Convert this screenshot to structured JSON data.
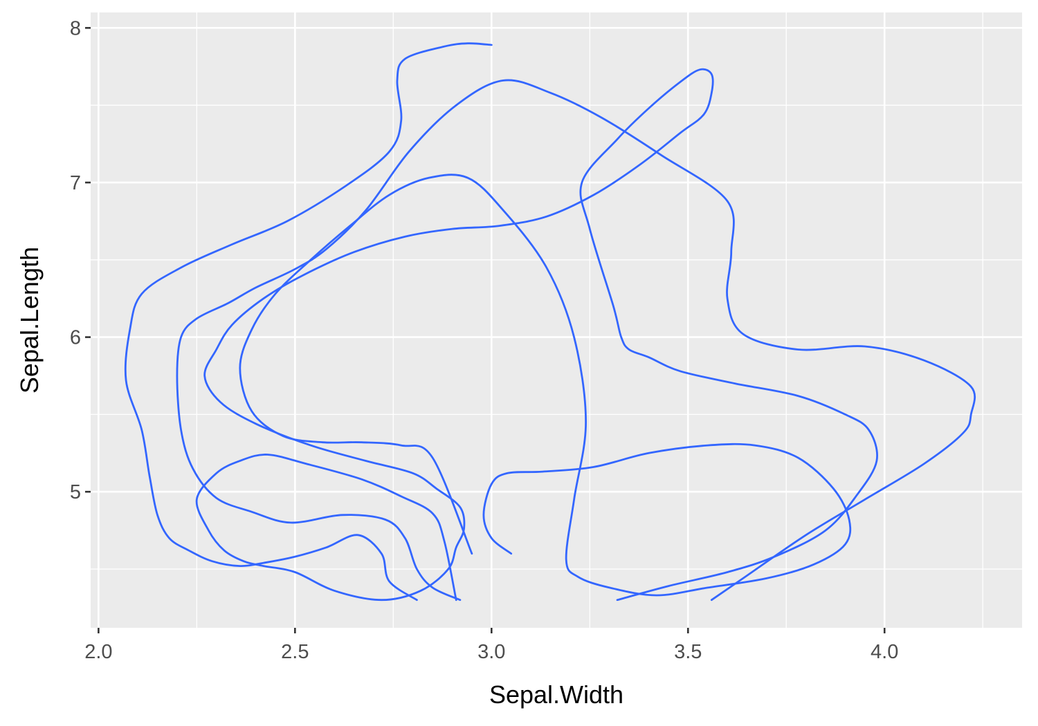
{
  "chart_data": {
    "type": "contour",
    "xlabel": "Sepal.Width",
    "ylabel": "Sepal.Length",
    "xlim": [
      1.98,
      4.35
    ],
    "ylim": [
      4.12,
      8.1
    ],
    "x_ticks": [
      2.0,
      2.5,
      3.0,
      3.5,
      4.0
    ],
    "x_tick_labels": [
      "2.0",
      "2.5",
      "3.0",
      "3.5",
      "4.0"
    ],
    "y_ticks": [
      5,
      6,
      7,
      8
    ],
    "y_tick_labels": [
      "5",
      "6",
      "7",
      "8"
    ],
    "grid": true,
    "legend": "none",
    "panel_background": "#ebebeb",
    "line_color": "#3366FF",
    "series": [
      {
        "x": [
          2.81,
          2.74,
          2.72,
          2.66,
          2.58,
          2.5,
          2.42,
          2.36,
          2.29,
          2.23,
          2.18,
          2.15,
          2.13,
          2.11,
          2.07,
          2.08,
          2.11,
          2.21,
          2.34,
          2.48,
          2.63,
          2.74,
          2.77,
          2.76,
          2.78,
          2.88,
          2.94,
          3.0
        ],
        "y": [
          4.3,
          4.42,
          4.6,
          4.72,
          4.64,
          4.58,
          4.54,
          4.52,
          4.55,
          4.62,
          4.7,
          4.85,
          5.1,
          5.4,
          5.72,
          6.05,
          6.28,
          6.45,
          6.6,
          6.75,
          6.98,
          7.2,
          7.4,
          7.66,
          7.8,
          7.88,
          7.9,
          7.89
        ]
      },
      {
        "x": [
          2.92,
          2.85,
          2.81,
          2.78,
          2.73,
          2.62,
          2.49,
          2.39,
          2.3,
          2.24,
          2.21,
          2.2,
          2.21,
          2.25,
          2.33,
          2.4,
          2.5,
          2.58,
          2.68,
          2.79,
          2.91,
          3.03,
          3.15,
          3.28,
          3.43,
          3.6,
          3.61,
          3.6,
          3.64,
          3.78,
          3.95,
          4.1,
          4.22,
          4.22,
          4.2,
          4.1,
          3.95,
          3.8,
          3.64,
          3.56
        ],
        "y": [
          4.3,
          4.38,
          4.5,
          4.7,
          4.82,
          4.85,
          4.8,
          4.87,
          4.96,
          5.15,
          5.4,
          5.75,
          6.0,
          6.12,
          6.22,
          6.32,
          6.44,
          6.57,
          6.82,
          7.2,
          7.5,
          7.66,
          7.58,
          7.42,
          7.18,
          6.88,
          6.55,
          6.25,
          6.02,
          5.92,
          5.94,
          5.85,
          5.68,
          5.5,
          5.38,
          5.18,
          4.95,
          4.72,
          4.44,
          4.3
        ]
      },
      {
        "x": [
          3.32,
          3.45,
          3.6,
          3.72,
          3.85,
          3.93,
          3.98,
          3.96,
          3.9,
          3.78,
          3.62,
          3.48,
          3.4,
          3.35,
          3.33,
          3.31,
          3.25,
          3.23,
          3.32,
          3.4,
          3.48,
          3.53,
          3.56,
          3.56,
          3.54,
          3.48,
          3.38,
          3.26,
          3.14,
          3.02,
          2.9,
          2.78,
          2.65,
          2.52,
          2.42,
          2.34,
          2.3,
          2.27,
          2.31,
          2.4,
          2.54,
          2.68,
          2.8,
          2.86,
          2.92,
          2.93,
          2.91,
          2.89,
          2.82,
          2.72,
          2.6,
          2.5,
          2.42,
          2.37,
          2.32,
          2.28,
          2.25,
          2.3,
          2.36,
          2.43,
          2.53,
          2.67,
          2.77,
          2.85,
          2.88,
          2.91
        ],
        "y": [
          4.3,
          4.39,
          4.48,
          4.58,
          4.75,
          4.98,
          5.2,
          5.4,
          5.5,
          5.62,
          5.7,
          5.78,
          5.87,
          5.92,
          6.0,
          6.2,
          6.7,
          7.0,
          7.28,
          7.48,
          7.65,
          7.73,
          7.7,
          7.58,
          7.44,
          7.32,
          7.12,
          6.92,
          6.78,
          6.72,
          6.7,
          6.65,
          6.55,
          6.4,
          6.25,
          6.08,
          5.92,
          5.75,
          5.58,
          5.44,
          5.3,
          5.2,
          5.12,
          5.02,
          4.9,
          4.76,
          4.64,
          4.5,
          4.36,
          4.3,
          4.36,
          4.48,
          4.52,
          4.55,
          4.62,
          4.75,
          4.95,
          5.12,
          5.2,
          5.24,
          5.18,
          5.08,
          4.97,
          4.86,
          4.68,
          4.3
        ]
      },
      {
        "x": [
          3.05,
          3.0,
          2.98,
          3.0,
          3.04,
          3.13,
          3.26,
          3.4,
          3.55,
          3.67,
          3.78,
          3.87,
          3.91,
          3.9,
          3.82,
          3.7,
          3.55,
          3.42,
          3.3,
          3.22,
          3.19,
          3.21,
          3.24,
          3.21,
          3.14,
          3.03,
          2.94,
          2.84,
          2.74,
          2.64,
          2.54,
          2.45,
          2.39,
          2.36,
          2.39,
          2.47,
          2.57,
          2.67,
          2.77,
          2.85,
          2.95
        ],
        "y": [
          4.6,
          4.7,
          4.85,
          5.05,
          5.12,
          5.13,
          5.16,
          5.25,
          5.3,
          5.3,
          5.22,
          5.02,
          4.82,
          4.66,
          4.53,
          4.44,
          4.38,
          4.33,
          4.38,
          4.45,
          4.56,
          4.95,
          5.45,
          6.0,
          6.45,
          6.82,
          7.03,
          7.03,
          6.92,
          6.72,
          6.5,
          6.28,
          6.05,
          5.8,
          5.52,
          5.36,
          5.32,
          5.32,
          5.3,
          5.22,
          4.6
        ]
      }
    ]
  }
}
